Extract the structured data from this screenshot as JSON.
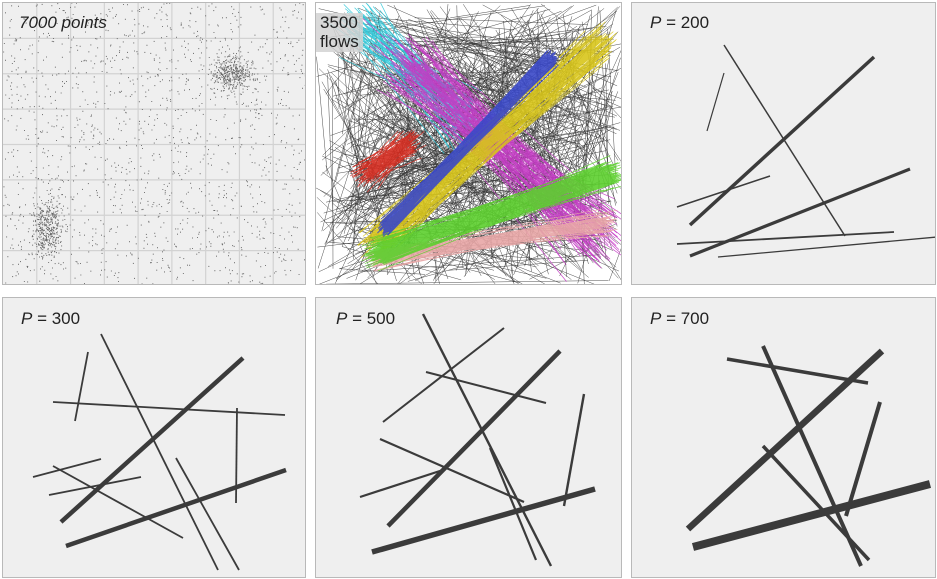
{
  "panels": [
    {
      "id": "points",
      "label": "7000 points",
      "italic_all": true
    },
    {
      "id": "flows",
      "label_lines": [
        "3500",
        "flows"
      ]
    },
    {
      "id": "p200",
      "label_var": "P",
      "label_rest": " = 200"
    },
    {
      "id": "p300",
      "label_var": "P",
      "label_rest": " = 300"
    },
    {
      "id": "p500",
      "label_var": "P",
      "label_rest": " = 500"
    },
    {
      "id": "p700",
      "label_var": "P",
      "label_rest": " = 700"
    }
  ],
  "flow_colors": {
    "background_lines": "#3a3a3a",
    "cluster_red": "#d42a1e",
    "cluster_blue": "#3a48c8",
    "cluster_yellow": "#d8c51a",
    "cluster_green": "#5ccf2e",
    "cluster_magenta": "#c43ac4",
    "cluster_cyan": "#2ec8d8",
    "cluster_pink": "#e8a6a6"
  },
  "line_color": "#3b3b3b"
}
